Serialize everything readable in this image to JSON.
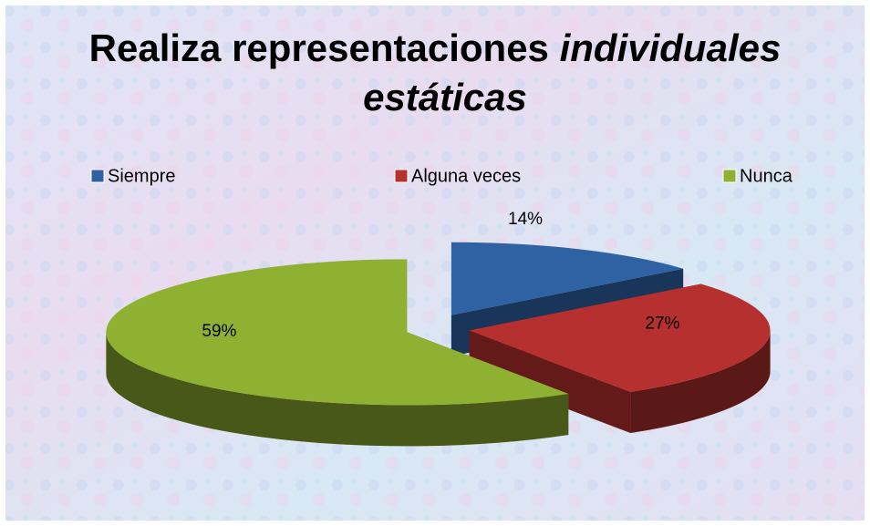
{
  "chart_data": {
    "type": "pie3d",
    "title": [
      "Realiza representaciones",
      "individuales",
      "estáticas"
    ],
    "categories": [
      "Siempre",
      "Alguna veces",
      "Nunca"
    ],
    "values": [
      14,
      27,
      59
    ],
    "value_labels": [
      "14%",
      "27%",
      "59%"
    ],
    "colors": [
      "#2f62a3",
      "#b5302e",
      "#8fb131"
    ],
    "legend": "top"
  }
}
